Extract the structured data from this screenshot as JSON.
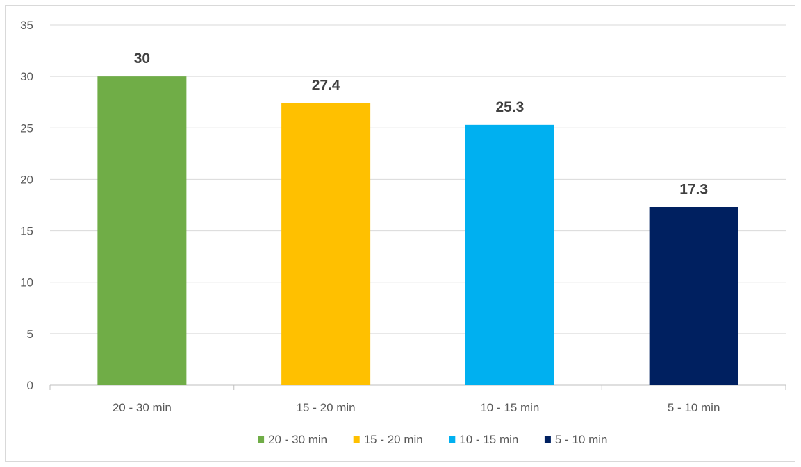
{
  "chart_data": {
    "type": "bar",
    "title": "",
    "xlabel": "",
    "ylabel": "",
    "categories": [
      "20 - 30 min",
      "15 - 20 min",
      "10 - 15 min",
      "5 - 10 min"
    ],
    "values": [
      30,
      27.4,
      25.3,
      17.3
    ],
    "data_labels": [
      "30",
      "27.4",
      "25.3",
      "17.3"
    ],
    "colors": [
      "#70AD47",
      "#FFC000",
      "#00B0F0",
      "#002060"
    ],
    "ylim": [
      0,
      35
    ],
    "yticks": [
      0,
      5,
      10,
      15,
      20,
      25,
      30,
      35
    ],
    "grid": true,
    "legend_position": "bottom",
    "legend": [
      "20 - 30 min",
      "15 - 20 min",
      "10 - 15 min",
      "5 - 10 min"
    ]
  }
}
